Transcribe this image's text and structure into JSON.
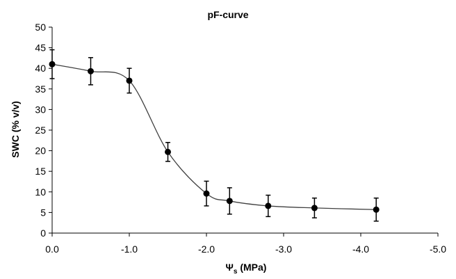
{
  "chart_data": {
    "type": "scatter",
    "title": "pF-curve",
    "xlabel_symbol": "Ψ",
    "xlabel_sub": "s",
    "xlabel_rest": " (MPa)",
    "ylabel": "SWC (% v/v)",
    "xlim": [
      0,
      -5
    ],
    "ylim": [
      0,
      50
    ],
    "x_ticks": [
      0,
      -1,
      -2,
      -3,
      -4,
      -5
    ],
    "x_tick_labels": [
      "0.0",
      "-1.0",
      "-2.0",
      "-3.0",
      "-4.0",
      "-5.0"
    ],
    "y_ticks": [
      0,
      5,
      10,
      15,
      20,
      25,
      30,
      35,
      40,
      45,
      50
    ],
    "y_tick_labels": [
      "0",
      "5",
      "10",
      "15",
      "20",
      "25",
      "30",
      "35",
      "40",
      "45",
      "50"
    ],
    "grid": false,
    "legend": "none",
    "marker_color": "#000000",
    "line_color": "#404040",
    "series": [
      {
        "x": [
          0.0,
          -0.5,
          -1.0,
          -1.5,
          -2.0,
          -2.3,
          -2.8,
          -3.4,
          -4.2
        ],
        "y": [
          41.0,
          39.3,
          37.0,
          19.7,
          9.6,
          7.8,
          6.6,
          6.1,
          5.7
        ],
        "error": [
          3.5,
          3.3,
          3.0,
          2.3,
          3.0,
          3.2,
          2.6,
          2.4,
          2.8
        ]
      }
    ]
  }
}
